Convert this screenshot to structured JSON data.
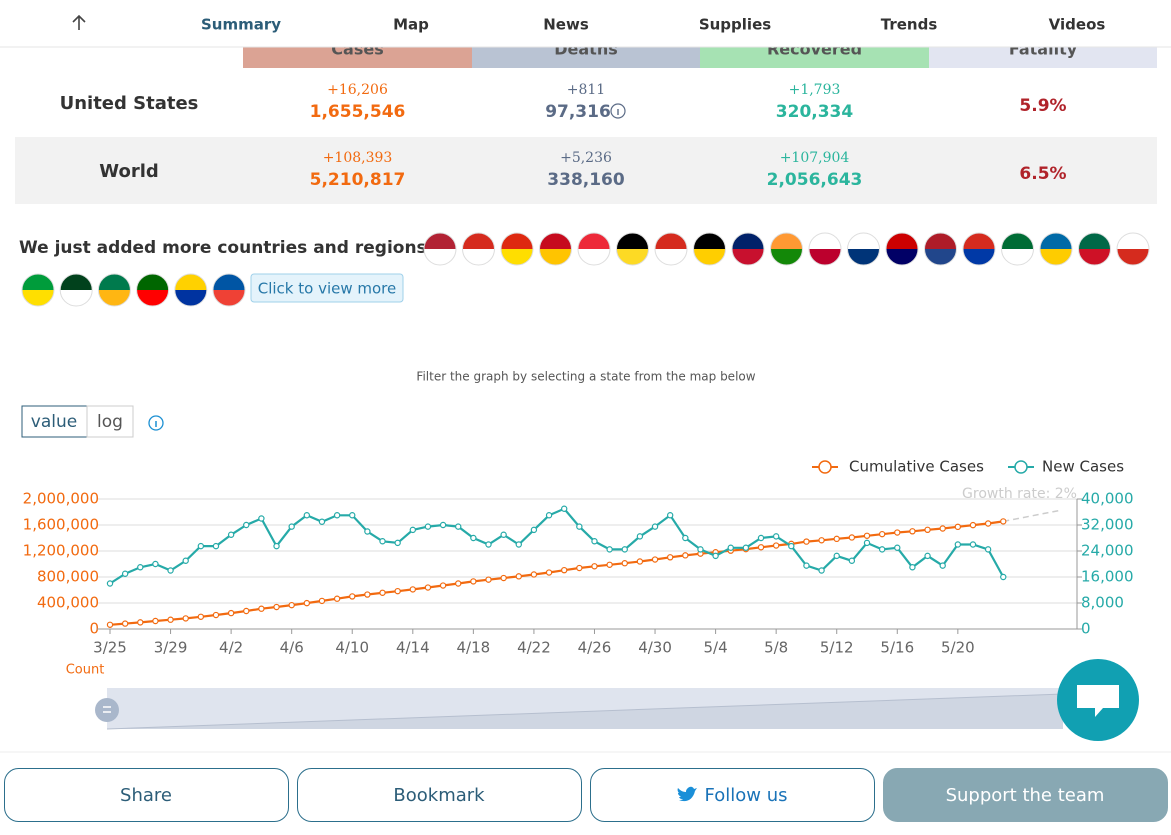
{
  "nav": {
    "tabs": [
      "Summary",
      "Map",
      "News",
      "Supplies",
      "Trends",
      "Videos"
    ]
  },
  "table": {
    "headers": [
      "Cases",
      "Deaths",
      "Recovered",
      "Fatality"
    ],
    "rows": [
      {
        "label": "United States",
        "cells": [
          {
            "change": "+16,206",
            "total": "1,655,546"
          },
          {
            "change": "+811",
            "total": "97,316"
          },
          {
            "change": "+1,793",
            "total": "320,334"
          }
        ],
        "fatality": "5.9%"
      },
      {
        "label": "World",
        "cells": [
          {
            "change": "+108,393",
            "total": "5,210,817"
          },
          {
            "change": "+5,236",
            "total": "338,160"
          },
          {
            "change": "+107,904",
            "total": "2,056,643"
          }
        ],
        "fatality": "6.5%"
      }
    ]
  },
  "banner": {
    "text": "We just added more countries and regions!",
    "button": "Click to view more"
  },
  "filter_note": "Filter the graph by selecting a state from the map below",
  "toggle": [
    "value",
    "log"
  ],
  "chart_data": {
    "type": "line",
    "categories": [
      "3/25",
      null,
      null,
      null,
      "3/29",
      null,
      null,
      null,
      "4/2",
      null,
      null,
      null,
      "4/6",
      null,
      null,
      null,
      "4/10",
      null,
      null,
      null,
      "4/14",
      null,
      null,
      null,
      "4/18",
      null,
      null,
      null,
      "4/22",
      null,
      null,
      null,
      "4/26",
      null,
      null,
      null,
      "4/30",
      null,
      null,
      null,
      "5/4",
      null,
      null,
      null,
      "5/8",
      null,
      null,
      null,
      "5/12",
      null,
      null,
      null,
      "5/16",
      null,
      null,
      null,
      "5/20",
      null,
      null,
      null
    ],
    "series": [
      {
        "name": "Cumulative Cases",
        "color": "#f26a10",
        "axis": "y",
        "values": [
          65000,
          83000,
          102000,
          123000,
          143000,
          163000,
          188000,
          215000,
          245000,
          277000,
          312000,
          338000,
          367000,
          398000,
          432000,
          466000,
          501000,
          530000,
          557000,
          582000,
          609000,
          638000,
          669000,
          700000,
          732000,
          759000,
          784000,
          810000,
          839000,
          869000,
          905000,
          938000,
          965000,
          988000,
          1012000,
          1039000,
          1069000,
          1103000,
          1133000,
          1159000,
          1181000,
          1205000,
          1229000,
          1257000,
          1284000,
          1310000,
          1345000,
          1365000,
          1387000,
          1408000,
          1434000,
          1459000,
          1484000,
          1503000,
          1526000,
          1546000,
          1572000,
          1598000,
          1623000,
          1655546
        ]
      },
      {
        "name": "New Cases",
        "color": "#26aaa8",
        "axis": "y2",
        "values": [
          14000,
          17000,
          19000,
          20000,
          18000,
          21000,
          25500,
          25500,
          29000,
          32000,
          34000,
          25500,
          31500,
          35000,
          33000,
          35000,
          35000,
          30000,
          27000,
          26500,
          30500,
          31500,
          32000,
          31500,
          28000,
          26000,
          29000,
          26000,
          30500,
          35000,
          37000,
          31500,
          27000,
          24500,
          24500,
          28500,
          31500,
          35000,
          28000,
          24500,
          22500,
          25000,
          25000,
          28000,
          28500,
          25500,
          19500,
          18000,
          22500,
          21000,
          26500,
          24500,
          25000,
          19000,
          22500,
          19500,
          26000,
          26000,
          24500,
          16000
        ]
      }
    ],
    "ylim": [
      0,
      2000000
    ],
    "yticks": [
      0,
      {
        "value": 400000,
        "label": "400,000"
      },
      {
        "value": 800000,
        "label": "800,000"
      },
      {
        "value": 1200000,
        "label": "1,200,000"
      },
      {
        "value": 1600000,
        "label": "1,600,000"
      },
      {
        "value": 2000000,
        "label": "2,000,000"
      }
    ],
    "y2lim": [
      0,
      40000
    ],
    "y2ticks": [
      0,
      {
        "value": 8000,
        "label": "8,000"
      },
      {
        "value": 16000,
        "label": "16,000"
      },
      {
        "value": 24000,
        "label": "24,000"
      },
      {
        "value": 32000,
        "label": "32,000"
      },
      {
        "value": 40000,
        "label": "40,000"
      }
    ],
    "grid": true,
    "legend": "top-right",
    "annotation": "Growth rate: 2%",
    "ylabel": "Count"
  },
  "footer": {
    "buttons": [
      "Share",
      "Bookmark",
      "Follow us",
      "Support the team"
    ]
  }
}
